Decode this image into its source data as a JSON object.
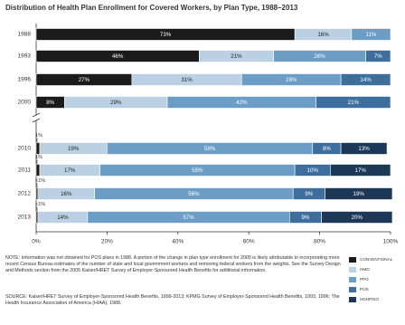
{
  "chart_data": {
    "type": "stacked-bar-horizontal",
    "title": "Distribution of Health Plan Enrollment for Covered Workers, by Plan Type, 1988–2013",
    "categories": [
      "1988",
      "1993",
      "1996",
      "2000",
      "2010",
      "2011",
      "2012",
      "2013"
    ],
    "series": [
      {
        "name": "CONVENTIONAL",
        "color": "#1b1b1b",
        "values": [
          73,
          46,
          27,
          8,
          1,
          1,
          0.5,
          0.5
        ],
        "value_labels": [
          "73%",
          "46%",
          "27%",
          "8%",
          "1%",
          "1%",
          "<1%",
          "<1%"
        ]
      },
      {
        "name": "HMO",
        "color": "#bcd0e3",
        "values": [
          16,
          21,
          31,
          29,
          19,
          17,
          16,
          14
        ],
        "value_labels": [
          "16%",
          "21%",
          "31%",
          "29%",
          "19%",
          "17%",
          "16%",
          "14%"
        ]
      },
      {
        "name": "PPO",
        "color": "#6b9dc6",
        "values": [
          11,
          26,
          28,
          42,
          58,
          55,
          56,
          57
        ],
        "value_labels": [
          "11%",
          "26%",
          "28%",
          "42%",
          "58%",
          "55%",
          "56%",
          "57%"
        ]
      },
      {
        "name": "POS",
        "color": "#3e6e9d",
        "values": [
          null,
          7,
          14,
          21,
          8,
          10,
          9,
          9
        ],
        "value_labels": [
          null,
          "7%",
          "14%",
          "21%",
          "8%",
          "10%",
          "9%",
          "9%"
        ]
      },
      {
        "name": "HDHP/SO",
        "color": "#1d3857",
        "values": [
          null,
          null,
          null,
          null,
          13,
          17,
          19,
          20
        ],
        "value_labels": [
          null,
          null,
          null,
          null,
          "13%",
          "17%",
          "19%",
          "20%"
        ]
      }
    ],
    "xlim": [
      0,
      100
    ],
    "xticks": [
      {
        "value": 0,
        "label": "0%"
      },
      {
        "value": 20,
        "label": "20%"
      },
      {
        "value": 40,
        "label": "40%"
      },
      {
        "value": 60,
        "label": "60%"
      },
      {
        "value": 80,
        "label": "80%"
      },
      {
        "value": 100,
        "label": "100%"
      }
    ],
    "note": "NOTE: Information was not obtained for POS plans in 1988. A portion of the change in plan type enrollment for 2005 is likely attributable to incorporating more recent Census Bureau estimates of the number of state and local government workers and removing federal workers from the weights. See the Survey Design and Methods section from the 2005 Kaiser/HRET Survey of Employer-Sponsored Health Benefits for additional information.",
    "source": "SOURCE: Kaiser/HRET Survey of Employer-Sponsored Health Benefits, 1999-2013; KPMG Survey of Employer-Sponsored Health Benefits, 1993, 1996; The Health Insurance Association of America (HIAA), 1988."
  }
}
